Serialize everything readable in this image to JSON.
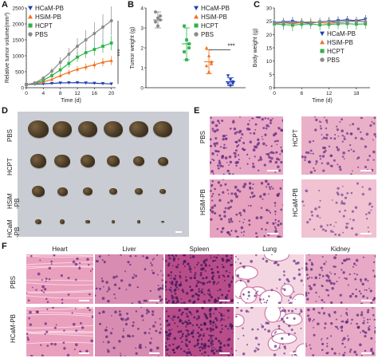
{
  "panels": {
    "A": {
      "label": "A"
    },
    "B": {
      "label": "B"
    },
    "C": {
      "label": "C"
    },
    "D": {
      "label": "D"
    },
    "E": {
      "label": "E"
    },
    "F": {
      "label": "F"
    }
  },
  "legend": {
    "groups": [
      "HCaM-PB",
      "HSiM-PB",
      "HCPT",
      "PBS"
    ],
    "colors": [
      "#1f3fb5",
      "#f2701e",
      "#2cb34a",
      "#8a8a8a"
    ],
    "markers": [
      "triangle-down-icon",
      "triangle-up-icon",
      "square-icon",
      "circle-icon"
    ]
  },
  "significance": {
    "A": "***",
    "B": "***"
  },
  "chart_data": [
    {
      "type": "line",
      "panel": "A",
      "xlabel": "Time (d)",
      "ylabel": "Relative tumor volume(mm³)",
      "x": [
        0,
        2,
        4,
        6,
        8,
        10,
        12,
        14,
        16,
        18,
        20
      ],
      "xticks": [
        0,
        4,
        8,
        12,
        16,
        20
      ],
      "yticks": [
        0,
        500,
        1000,
        1500,
        2000,
        2500
      ],
      "ylim": [
        0,
        2500
      ],
      "xlim": [
        0,
        21
      ],
      "series": [
        {
          "name": "HCaM-PB",
          "values": [
            100,
            110,
            120,
            135,
            150,
            155,
            160,
            150,
            140,
            130,
            120
          ],
          "err": [
            10,
            10,
            15,
            20,
            25,
            25,
            30,
            25,
            25,
            20,
            20
          ]
        },
        {
          "name": "HSiM-PB",
          "values": [
            100,
            130,
            180,
            260,
            380,
            480,
            580,
            650,
            720,
            800,
            850
          ],
          "err": [
            10,
            20,
            30,
            50,
            70,
            90,
            100,
            110,
            120,
            130,
            140
          ]
        },
        {
          "name": "HCPT",
          "values": [
            100,
            140,
            230,
            380,
            560,
            760,
            960,
            1100,
            1200,
            1300,
            1400
          ],
          "err": [
            10,
            20,
            40,
            70,
            100,
            130,
            150,
            170,
            190,
            210,
            230
          ]
        },
        {
          "name": "PBS",
          "values": [
            100,
            150,
            300,
            520,
            800,
            1050,
            1300,
            1500,
            1700,
            1900,
            2100
          ],
          "err": [
            10,
            30,
            60,
            100,
            150,
            200,
            250,
            300,
            350,
            400,
            450
          ]
        }
      ]
    },
    {
      "type": "scatter",
      "panel": "B",
      "ylabel": "Tumor weight (g)",
      "yticks": [
        0,
        1,
        2,
        3,
        4
      ],
      "ylim": [
        0,
        4
      ],
      "series": [
        {
          "name": "PBS",
          "mean": 3.4,
          "sd": 0.4,
          "points": [
            3.8,
            3.5,
            3.4,
            3.3,
            3.1,
            3.6
          ]
        },
        {
          "name": "HCPT",
          "mean": 2.2,
          "sd": 0.8,
          "points": [
            3.1,
            2.4,
            2.2,
            1.8,
            1.4,
            2.0
          ]
        },
        {
          "name": "HSiM-PB",
          "mean": 1.3,
          "sd": 0.6,
          "points": [
            2.0,
            1.6,
            1.3,
            1.1,
            0.8,
            1.2
          ]
        },
        {
          "name": "HCaM-PB",
          "mean": 0.3,
          "sd": 0.2,
          "points": [
            0.6,
            0.4,
            0.3,
            0.2,
            0.1,
            0.2
          ]
        }
      ]
    },
    {
      "type": "line",
      "panel": "C",
      "xlabel": "Time (d)",
      "ylabel": "Body weight (g)",
      "x": [
        0,
        2,
        4,
        6,
        8,
        10,
        12,
        14,
        16,
        18,
        20
      ],
      "xticks": [
        0,
        6,
        12,
        18
      ],
      "yticks": [
        0,
        5,
        10,
        15,
        20,
        25,
        30
      ],
      "ylim": [
        0,
        30
      ],
      "xlim": [
        0,
        21
      ],
      "series": [
        {
          "name": "HCaM-PB",
          "values": [
            24.5,
            24.8,
            25.0,
            24.6,
            24.3,
            24.8,
            25.0,
            25.3,
            25.5,
            25.2,
            25.8
          ],
          "err": [
            1.5,
            1.5,
            1.6,
            1.5,
            1.4,
            1.5,
            1.6,
            1.5,
            1.5,
            1.5,
            1.5
          ]
        },
        {
          "name": "HSiM-PB",
          "values": [
            24.2,
            24.5,
            24.0,
            24.6,
            24.8,
            24.5,
            24.2,
            24.6,
            24.9,
            25.0,
            24.8
          ],
          "err": [
            1.5,
            1.6,
            1.5,
            1.6,
            1.5,
            1.5,
            1.6,
            1.5,
            1.5,
            1.5,
            1.5
          ]
        },
        {
          "name": "HCPT",
          "values": [
            24.0,
            23.8,
            23.5,
            23.9,
            24.0,
            23.6,
            23.8,
            24.0,
            24.1,
            23.9,
            24.0
          ],
          "err": [
            1.8,
            2.0,
            2.2,
            1.8,
            1.9,
            2.0,
            1.8,
            1.9,
            2.0,
            2.0,
            1.9
          ]
        },
        {
          "name": "PBS",
          "values": [
            24.3,
            24.6,
            24.4,
            24.8,
            24.5,
            24.7,
            24.9,
            24.6,
            24.8,
            25.0,
            24.9
          ],
          "err": [
            1.2,
            1.3,
            1.2,
            1.4,
            1.3,
            1.2,
            1.3,
            1.4,
            1.2,
            1.3,
            1.2
          ]
        }
      ]
    }
  ],
  "photo_D": {
    "rows": [
      "PBS",
      "HCPT",
      "HSiM\n-PB",
      "HCaM\n-PB"
    ],
    "tumor_sizes": [
      [
        1.0,
        0.95,
        0.9,
        0.9,
        0.95,
        0.9
      ],
      [
        0.8,
        0.75,
        0.7,
        0.6,
        0.55,
        0.5
      ],
      [
        0.6,
        0.5,
        0.45,
        0.4,
        0.35,
        0.3
      ],
      [
        0.3,
        0.25,
        0.2,
        0.18,
        0.15,
        0.12
      ]
    ]
  },
  "histo_E": {
    "labels": [
      "PBS",
      "HCPT",
      "HSiM-PB",
      "HCaM-PB"
    ]
  },
  "histo_F": {
    "columns": [
      "Heart",
      "Liver",
      "Spleen",
      "Lung",
      "Kidney"
    ],
    "rows": [
      "PBS",
      "HCaM-PB"
    ]
  }
}
